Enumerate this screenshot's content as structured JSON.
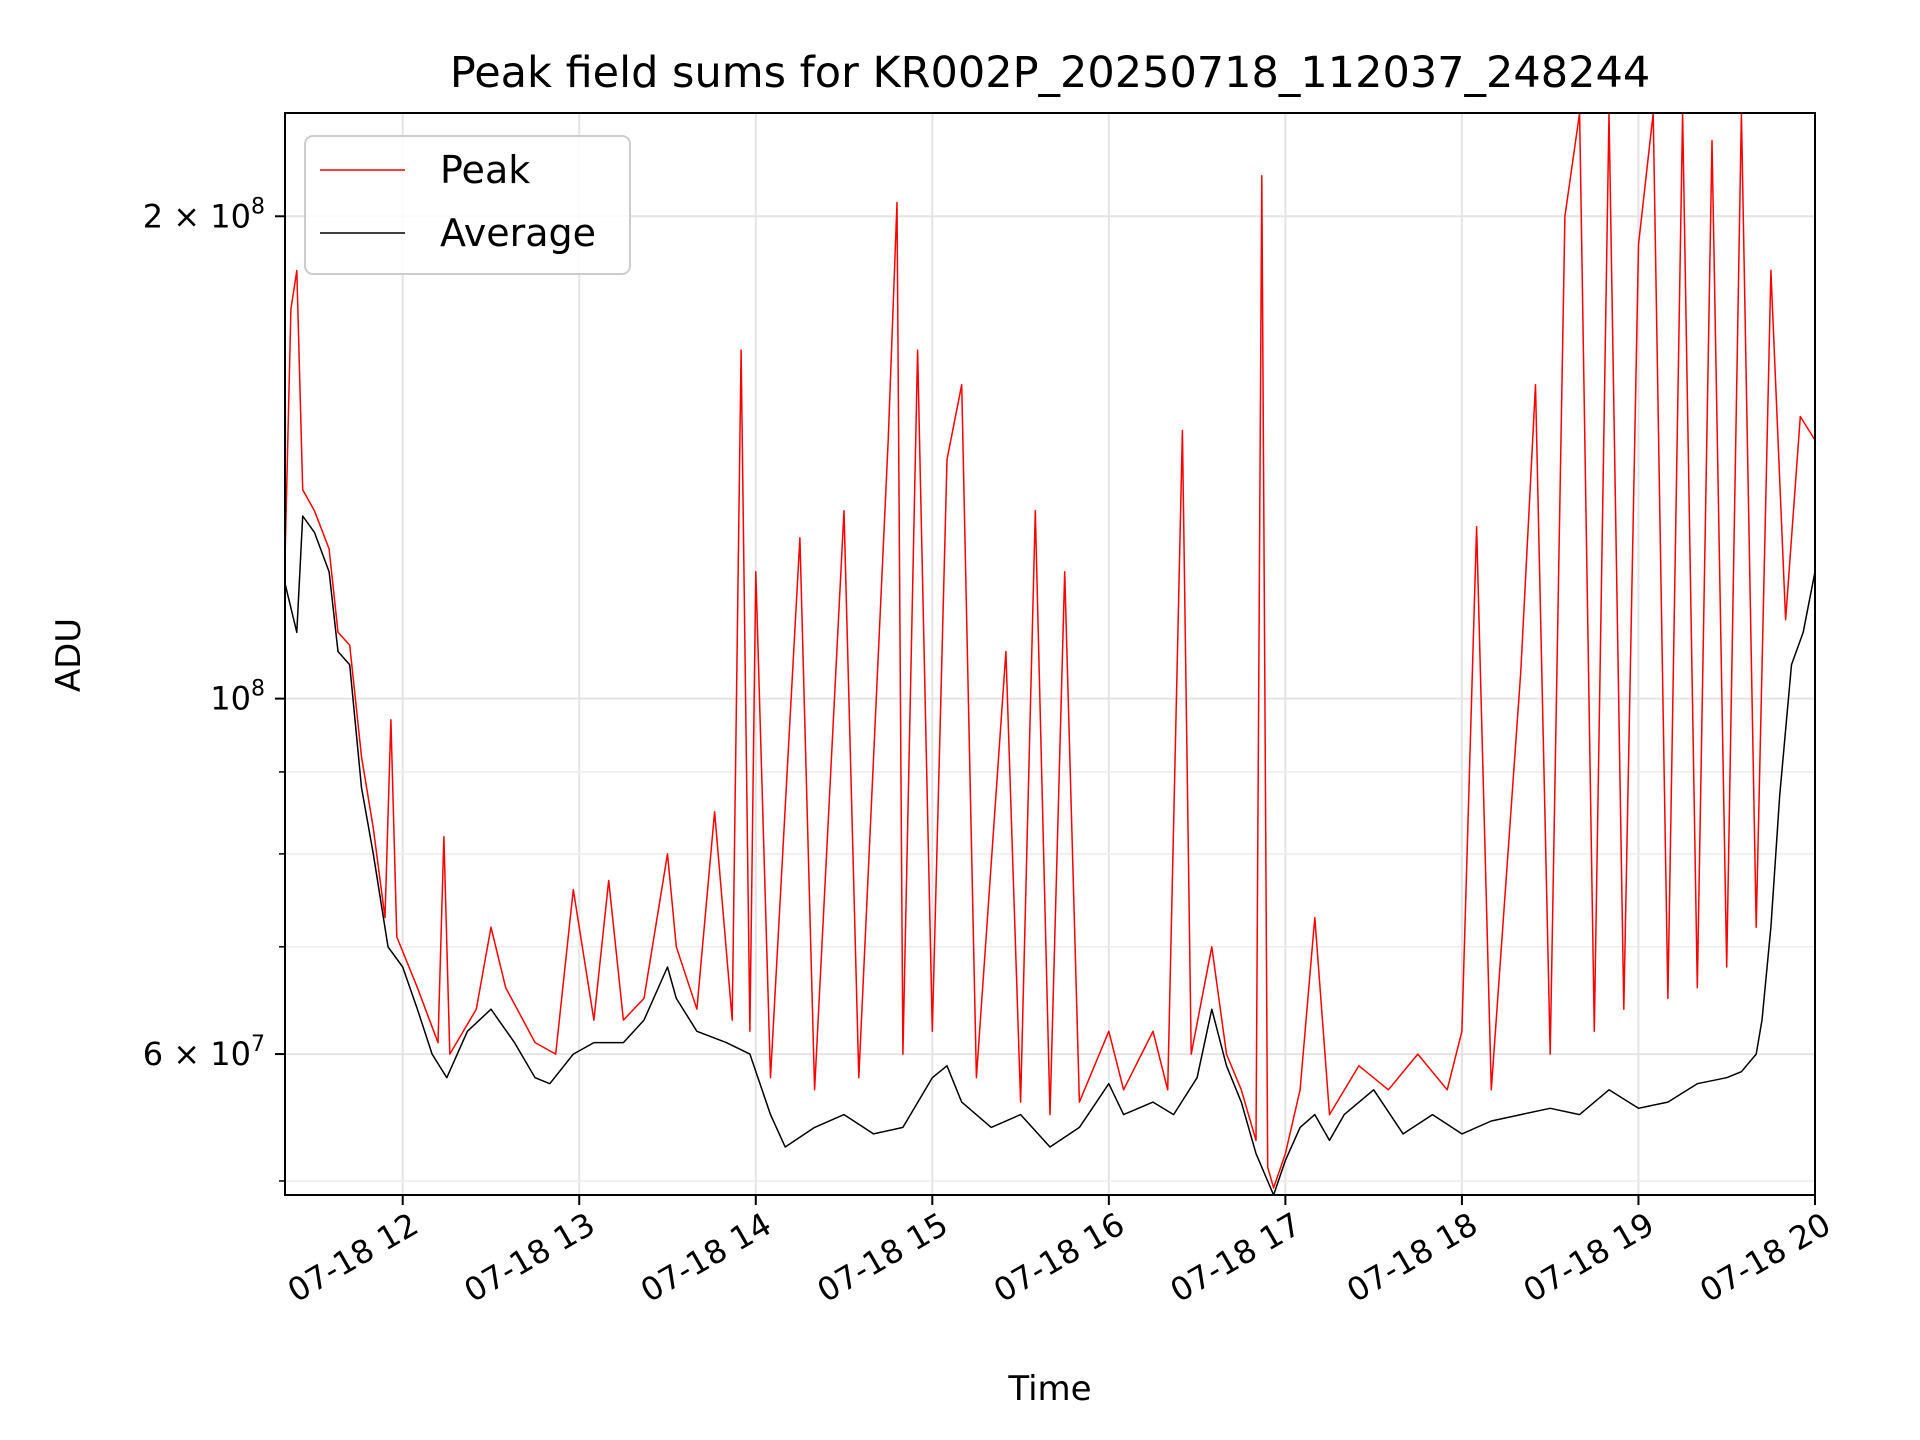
{
  "chart_data": {
    "type": "line",
    "title": "Peak field sums for KR002P_20250718_112037_248244",
    "xlabel": "Time",
    "ylabel": "ADU",
    "yscale": "log",
    "grid": true,
    "legend_position": "top-left",
    "xlim": [
      "2025-07-18 11:20",
      "2025-07-18 20:00"
    ],
    "ylim": [
      49000000,
      232000000
    ],
    "x_ticks": [
      {
        "value": "2025-07-18 12:00",
        "label": "07-18 12"
      },
      {
        "value": "2025-07-18 13:00",
        "label": "07-18 13"
      },
      {
        "value": "2025-07-18 14:00",
        "label": "07-18 14"
      },
      {
        "value": "2025-07-18 15:00",
        "label": "07-18 15"
      },
      {
        "value": "2025-07-18 16:00",
        "label": "07-18 16"
      },
      {
        "value": "2025-07-18 17:00",
        "label": "07-18 17"
      },
      {
        "value": "2025-07-18 18:00",
        "label": "07-18 18"
      },
      {
        "value": "2025-07-18 19:00",
        "label": "07-18 19"
      },
      {
        "value": "2025-07-18 20:00",
        "label": "07-18 20"
      }
    ],
    "y_ticks": [
      {
        "value": 60000000,
        "base": "6",
        "exp": "7"
      },
      {
        "value": 100000000,
        "base": "",
        "exp": "8"
      },
      {
        "value": 200000000,
        "base": "2",
        "exp": "8"
      }
    ],
    "y_minor_ticks": [
      50000000,
      70000000,
      80000000,
      90000000,
      300000000
    ],
    "series": [
      {
        "name": "Peak",
        "color": "#ff0000",
        "points": [
          [
            "2025-07-18 11:20",
            122000000
          ],
          [
            "2025-07-18 11:22",
            175000000
          ],
          [
            "2025-07-18 11:24",
            185000000
          ],
          [
            "2025-07-18 11:26",
            135000000
          ],
          [
            "2025-07-18 11:30",
            131000000
          ],
          [
            "2025-07-18 11:35",
            124000000
          ],
          [
            "2025-07-18 11:38",
            110000000
          ],
          [
            "2025-07-18 11:42",
            108000000
          ],
          [
            "2025-07-18 11:46",
            92000000
          ],
          [
            "2025-07-18 11:50",
            83000000
          ],
          [
            "2025-07-18 11:54",
            73000000
          ],
          [
            "2025-07-18 11:56",
            97000000
          ],
          [
            "2025-07-18 11:58",
            71000000
          ],
          [
            "2025-07-18 12:05",
            66000000
          ],
          [
            "2025-07-18 12:12",
            61000000
          ],
          [
            "2025-07-18 12:14",
            82000000
          ],
          [
            "2025-07-18 12:16",
            60000000
          ],
          [
            "2025-07-18 12:25",
            64000000
          ],
          [
            "2025-07-18 12:30",
            72000000
          ],
          [
            "2025-07-18 12:35",
            66000000
          ],
          [
            "2025-07-18 12:45",
            61000000
          ],
          [
            "2025-07-18 12:52",
            60000000
          ],
          [
            "2025-07-18 12:58",
            76000000
          ],
          [
            "2025-07-18 13:05",
            63000000
          ],
          [
            "2025-07-18 13:10",
            77000000
          ],
          [
            "2025-07-18 13:15",
            63000000
          ],
          [
            "2025-07-18 13:22",
            65000000
          ],
          [
            "2025-07-18 13:30",
            80000000
          ],
          [
            "2025-07-18 13:33",
            70000000
          ],
          [
            "2025-07-18 13:40",
            64000000
          ],
          [
            "2025-07-18 13:46",
            85000000
          ],
          [
            "2025-07-18 13:52",
            63000000
          ],
          [
            "2025-07-18 13:55",
            165000000
          ],
          [
            "2025-07-18 13:58",
            62000000
          ],
          [
            "2025-07-18 14:00",
            120000000
          ],
          [
            "2025-07-18 14:05",
            58000000
          ],
          [
            "2025-07-18 14:15",
            126000000
          ],
          [
            "2025-07-18 14:20",
            57000000
          ],
          [
            "2025-07-18 14:30",
            131000000
          ],
          [
            "2025-07-18 14:35",
            58000000
          ],
          [
            "2025-07-18 14:45",
            145000000
          ],
          [
            "2025-07-18 14:48",
            204000000
          ],
          [
            "2025-07-18 14:50",
            60000000
          ],
          [
            "2025-07-18 14:55",
            165000000
          ],
          [
            "2025-07-18 15:00",
            62000000
          ],
          [
            "2025-07-18 15:05",
            141000000
          ],
          [
            "2025-07-18 15:10",
            157000000
          ],
          [
            "2025-07-18 15:15",
            58000000
          ],
          [
            "2025-07-18 15:25",
            107000000
          ],
          [
            "2025-07-18 15:30",
            56000000
          ],
          [
            "2025-07-18 15:35",
            131000000
          ],
          [
            "2025-07-18 15:40",
            55000000
          ],
          [
            "2025-07-18 15:45",
            120000000
          ],
          [
            "2025-07-18 15:50",
            56000000
          ],
          [
            "2025-07-18 16:00",
            62000000
          ],
          [
            "2025-07-18 16:05",
            57000000
          ],
          [
            "2025-07-18 16:15",
            62000000
          ],
          [
            "2025-07-18 16:20",
            57000000
          ],
          [
            "2025-07-18 16:25",
            147000000
          ],
          [
            "2025-07-18 16:28",
            60000000
          ],
          [
            "2025-07-18 16:35",
            70000000
          ],
          [
            "2025-07-18 16:40",
            60000000
          ],
          [
            "2025-07-18 16:45",
            57000000
          ],
          [
            "2025-07-18 16:50",
            53000000
          ],
          [
            "2025-07-18 16:52",
            212000000
          ],
          [
            "2025-07-18 16:54",
            51000000
          ],
          [
            "2025-07-18 16:56",
            49500000
          ],
          [
            "2025-07-18 17:00",
            52000000
          ],
          [
            "2025-07-18 17:05",
            57000000
          ],
          [
            "2025-07-18 17:10",
            73000000
          ],
          [
            "2025-07-18 17:15",
            55000000
          ],
          [
            "2025-07-18 17:25",
            59000000
          ],
          [
            "2025-07-18 17:35",
            57000000
          ],
          [
            "2025-07-18 17:45",
            60000000
          ],
          [
            "2025-07-18 17:55",
            57000000
          ],
          [
            "2025-07-18 18:00",
            62000000
          ],
          [
            "2025-07-18 18:05",
            128000000
          ],
          [
            "2025-07-18 18:10",
            57000000
          ],
          [
            "2025-07-18 18:20",
            104000000
          ],
          [
            "2025-07-18 18:25",
            157000000
          ],
          [
            "2025-07-18 18:30",
            60000000
          ],
          [
            "2025-07-18 18:35",
            200000000
          ],
          [
            "2025-07-18 18:40",
            232000000
          ],
          [
            "2025-07-18 18:45",
            62000000
          ],
          [
            "2025-07-18 18:50",
            232000000
          ],
          [
            "2025-07-18 18:55",
            64000000
          ],
          [
            "2025-07-18 19:00",
            192000000
          ],
          [
            "2025-07-18 19:05",
            232000000
          ],
          [
            "2025-07-18 19:10",
            65000000
          ],
          [
            "2025-07-18 19:15",
            232000000
          ],
          [
            "2025-07-18 19:20",
            66000000
          ],
          [
            "2025-07-18 19:25",
            223000000
          ],
          [
            "2025-07-18 19:30",
            68000000
          ],
          [
            "2025-07-18 19:35",
            232000000
          ],
          [
            "2025-07-18 19:40",
            72000000
          ],
          [
            "2025-07-18 19:45",
            185000000
          ],
          [
            "2025-07-18 19:50",
            112000000
          ],
          [
            "2025-07-18 19:55",
            150000000
          ],
          [
            "2025-07-18 20:00",
            145000000
          ]
        ]
      },
      {
        "name": "Average",
        "color": "#000000",
        "points": [
          [
            "2025-07-18 11:20",
            118000000
          ],
          [
            "2025-07-18 11:24",
            110000000
          ],
          [
            "2025-07-18 11:26",
            130000000
          ],
          [
            "2025-07-18 11:30",
            127000000
          ],
          [
            "2025-07-18 11:35",
            120000000
          ],
          [
            "2025-07-18 11:38",
            107000000
          ],
          [
            "2025-07-18 11:42",
            105000000
          ],
          [
            "2025-07-18 11:46",
            88000000
          ],
          [
            "2025-07-18 11:50",
            80000000
          ],
          [
            "2025-07-18 11:55",
            70000000
          ],
          [
            "2025-07-18 12:00",
            68000000
          ],
          [
            "2025-07-18 12:05",
            64000000
          ],
          [
            "2025-07-18 12:10",
            60000000
          ],
          [
            "2025-07-18 12:15",
            58000000
          ],
          [
            "2025-07-18 12:22",
            62000000
          ],
          [
            "2025-07-18 12:30",
            64000000
          ],
          [
            "2025-07-18 12:38",
            61000000
          ],
          [
            "2025-07-18 12:45",
            58000000
          ],
          [
            "2025-07-18 12:50",
            57500000
          ],
          [
            "2025-07-18 12:58",
            60000000
          ],
          [
            "2025-07-18 13:05",
            61000000
          ],
          [
            "2025-07-18 13:15",
            61000000
          ],
          [
            "2025-07-18 13:22",
            63000000
          ],
          [
            "2025-07-18 13:30",
            68000000
          ],
          [
            "2025-07-18 13:33",
            65000000
          ],
          [
            "2025-07-18 13:40",
            62000000
          ],
          [
            "2025-07-18 13:50",
            61000000
          ],
          [
            "2025-07-18 13:58",
            60000000
          ],
          [
            "2025-07-18 14:05",
            55000000
          ],
          [
            "2025-07-18 14:10",
            52500000
          ],
          [
            "2025-07-18 14:20",
            54000000
          ],
          [
            "2025-07-18 14:30",
            55000000
          ],
          [
            "2025-07-18 14:40",
            53500000
          ],
          [
            "2025-07-18 14:50",
            54000000
          ],
          [
            "2025-07-18 15:00",
            58000000
          ],
          [
            "2025-07-18 15:05",
            59000000
          ],
          [
            "2025-07-18 15:10",
            56000000
          ],
          [
            "2025-07-18 15:20",
            54000000
          ],
          [
            "2025-07-18 15:30",
            55000000
          ],
          [
            "2025-07-18 15:40",
            52500000
          ],
          [
            "2025-07-18 15:50",
            54000000
          ],
          [
            "2025-07-18 16:00",
            57500000
          ],
          [
            "2025-07-18 16:05",
            55000000
          ],
          [
            "2025-07-18 16:15",
            56000000
          ],
          [
            "2025-07-18 16:22",
            55000000
          ],
          [
            "2025-07-18 16:30",
            58000000
          ],
          [
            "2025-07-18 16:35",
            64000000
          ],
          [
            "2025-07-18 16:40",
            59000000
          ],
          [
            "2025-07-18 16:45",
            56000000
          ],
          [
            "2025-07-18 16:50",
            52000000
          ],
          [
            "2025-07-18 16:56",
            49000000
          ],
          [
            "2025-07-18 17:00",
            51500000
          ],
          [
            "2025-07-18 17:05",
            54000000
          ],
          [
            "2025-07-18 17:10",
            55000000
          ],
          [
            "2025-07-18 17:15",
            53000000
          ],
          [
            "2025-07-18 17:20",
            55000000
          ],
          [
            "2025-07-18 17:30",
            57000000
          ],
          [
            "2025-07-18 17:40",
            53500000
          ],
          [
            "2025-07-18 17:50",
            55000000
          ],
          [
            "2025-07-18 18:00",
            53500000
          ],
          [
            "2025-07-18 18:10",
            54500000
          ],
          [
            "2025-07-18 18:20",
            55000000
          ],
          [
            "2025-07-18 18:30",
            55500000
          ],
          [
            "2025-07-18 18:40",
            55000000
          ],
          [
            "2025-07-18 18:50",
            57000000
          ],
          [
            "2025-07-18 19:00",
            55500000
          ],
          [
            "2025-07-18 19:10",
            56000000
          ],
          [
            "2025-07-18 19:20",
            57500000
          ],
          [
            "2025-07-18 19:30",
            58000000
          ],
          [
            "2025-07-18 19:35",
            58500000
          ],
          [
            "2025-07-18 19:40",
            60000000
          ],
          [
            "2025-07-18 19:42",
            63000000
          ],
          [
            "2025-07-18 19:45",
            72000000
          ],
          [
            "2025-07-18 19:48",
            87000000
          ],
          [
            "2025-07-18 19:52",
            105000000
          ],
          [
            "2025-07-18 19:56",
            110000000
          ],
          [
            "2025-07-18 20:00",
            120000000
          ]
        ]
      }
    ]
  }
}
